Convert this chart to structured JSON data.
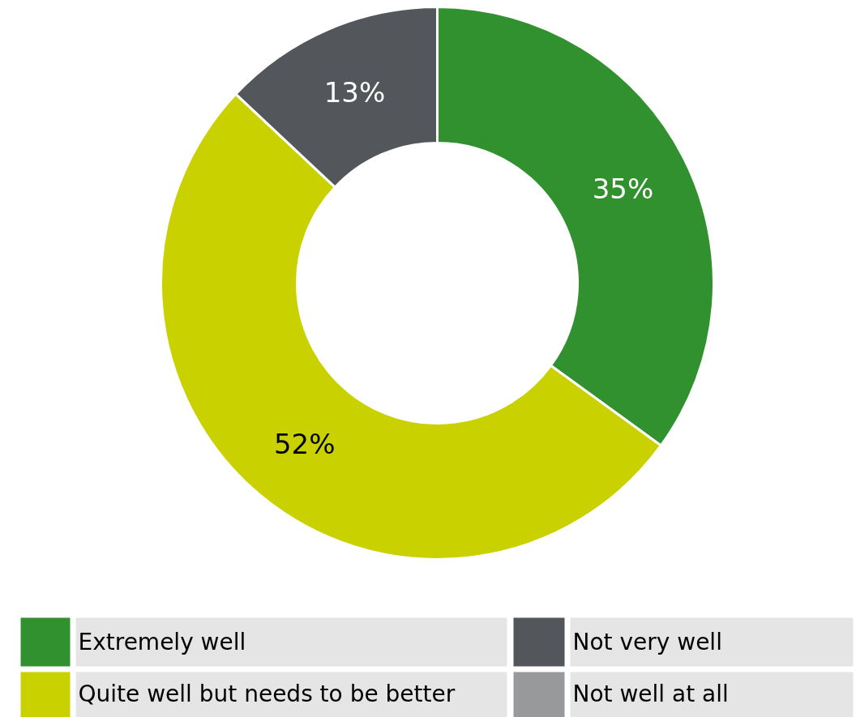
{
  "chart_data": {
    "type": "donut",
    "categories": [
      "Extremely well",
      "Quite well but needs to be better",
      "Not very well",
      "Not well at all"
    ],
    "values": [
      35,
      52,
      13,
      0
    ],
    "colors": [
      "#31912f",
      "#c9d200",
      "#53565a",
      "#98999b"
    ],
    "value_labels": [
      "35%",
      "52%",
      "13%",
      null
    ],
    "legend": "bottom"
  }
}
